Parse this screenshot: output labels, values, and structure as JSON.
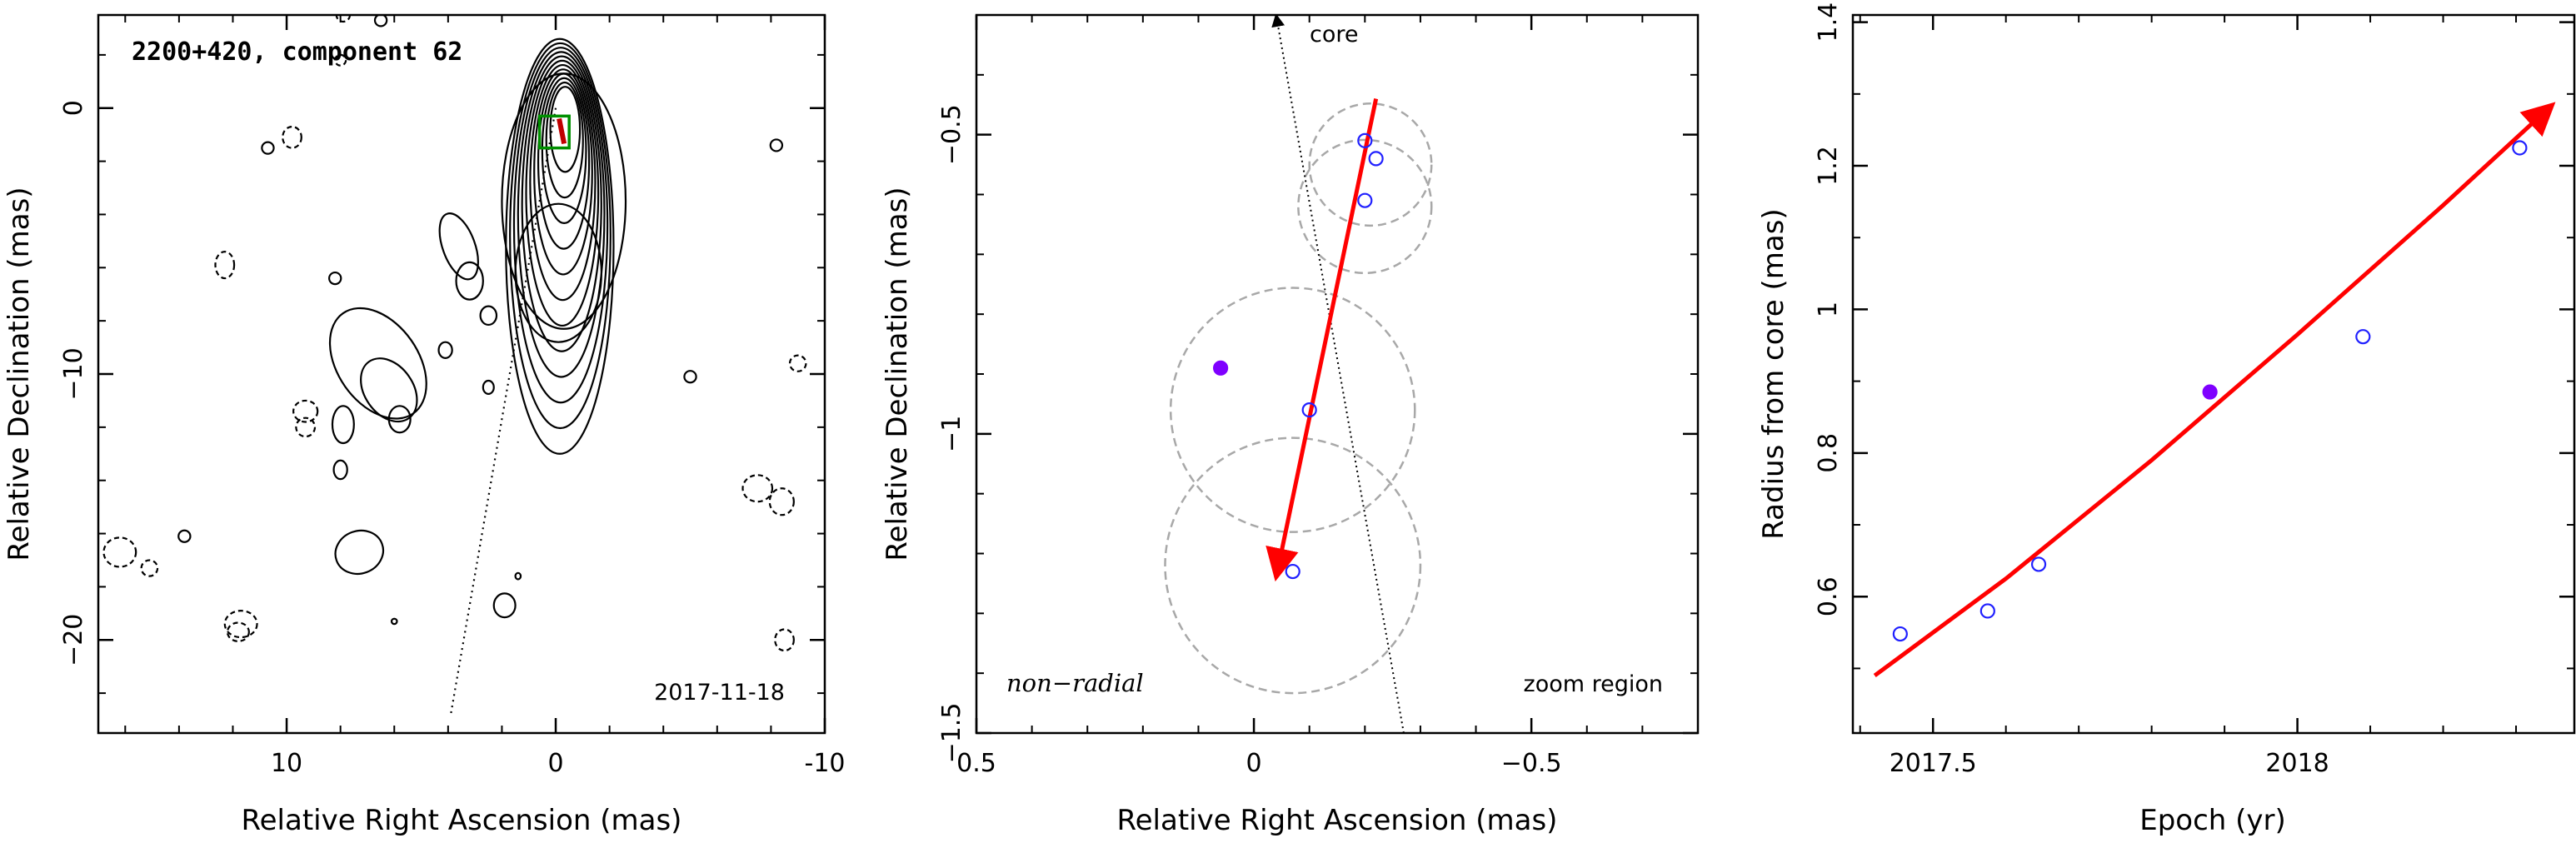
{
  "chart_data": [
    {
      "type": "contour",
      "title": "2200+420, component 62",
      "xlabel": "Relative Right Ascension (mas)",
      "ylabel": "Relative Declination (mas)",
      "xlim": [
        17,
        -10
      ],
      "ylim": [
        -23.5,
        3.5
      ],
      "xticks": [
        10,
        0,
        -10
      ],
      "yticks": [
        0,
        -10,
        -20
      ],
      "date_label": "2017-11-18",
      "core_direction_line": [
        [
          0,
          0
        ],
        [
          3.9,
          -22.8
        ]
      ],
      "zoom_box": {
        "x": [
          -0.5,
          0.6
        ],
        "y": [
          -1.5,
          -0.3
        ]
      },
      "component_marker": {
        "x": -0.25,
        "y": -0.9,
        "color": "#c00000"
      }
    },
    {
      "type": "scatter",
      "xlabel": "Relative Right Ascension (mas)",
      "ylabel": "Relative Declination (mas)",
      "xlim": [
        0.5,
        -0.8
      ],
      "ylim": [
        -1.5,
        -0.3
      ],
      "xticks": [
        0.5,
        0,
        -0.5
      ],
      "yticks": [
        -0.5,
        -1,
        -1.5
      ],
      "label_left": "non−radial",
      "label_right": "zoom region",
      "core_label": "core",
      "core_line": [
        [
          -0.27,
          -1.5
        ],
        [
          -0.04,
          -0.3
        ]
      ],
      "points": [
        {
          "x": -0.2,
          "y": -0.51,
          "filled": false
        },
        {
          "x": -0.22,
          "y": -0.54,
          "filled": false
        },
        {
          "x": -0.2,
          "y": -0.61,
          "filled": false
        },
        {
          "x": 0.06,
          "y": -0.89,
          "filled": true
        },
        {
          "x": -0.1,
          "y": -0.96,
          "filled": false
        },
        {
          "x": -0.07,
          "y": -1.23,
          "filled": false
        }
      ],
      "error_circles": [
        {
          "x": -0.21,
          "y": -0.55,
          "r": 0.11
        },
        {
          "x": -0.2,
          "y": -0.62,
          "r": 0.12
        },
        {
          "x": -0.07,
          "y": -0.96,
          "r": 0.22
        },
        {
          "x": -0.07,
          "y": -1.22,
          "r": 0.23
        }
      ],
      "trajectory": {
        "from": [
          -0.22,
          -0.44
        ],
        "to": [
          -0.04,
          -1.24
        ]
      }
    },
    {
      "type": "scatter",
      "xlabel": "Epoch (yr)",
      "ylabel": "Radius from core (mas)",
      "xlim": [
        2017.39,
        2018.38
      ],
      "ylim": [
        0.41,
        1.41
      ],
      "xticks": [
        2017.5,
        2018
      ],
      "xtick_labels": [
        "2017.5",
        "2018"
      ],
      "yticks": [
        0.6,
        0.8,
        1,
        1.2,
        1.4
      ],
      "ytick_labels": [
        "0.6",
        "0.8",
        "1",
        "1.2",
        "1.4"
      ],
      "points": [
        {
          "x": 2017.455,
          "y": 0.548,
          "filled": false
        },
        {
          "x": 2017.575,
          "y": 0.58,
          "filled": false
        },
        {
          "x": 2017.645,
          "y": 0.645,
          "filled": false
        },
        {
          "x": 2017.88,
          "y": 0.885,
          "filled": true
        },
        {
          "x": 2018.09,
          "y": 0.962,
          "filled": false
        },
        {
          "x": 2018.305,
          "y": 1.225,
          "filled": false
        }
      ],
      "fit_curve": [
        [
          2017.42,
          0.49
        ],
        [
          2017.6,
          0.625
        ],
        [
          2017.8,
          0.79
        ],
        [
          2018.0,
          0.965
        ],
        [
          2018.2,
          1.145
        ],
        [
          2018.35,
          1.285
        ]
      ]
    }
  ],
  "colors": {
    "open_marker": "#2020ff",
    "filled_marker": "#7f00ff",
    "trajectory": "#ff0000",
    "contour": "#000000",
    "error_circle": "#a8a8a8",
    "zoom_box": "#009000"
  }
}
